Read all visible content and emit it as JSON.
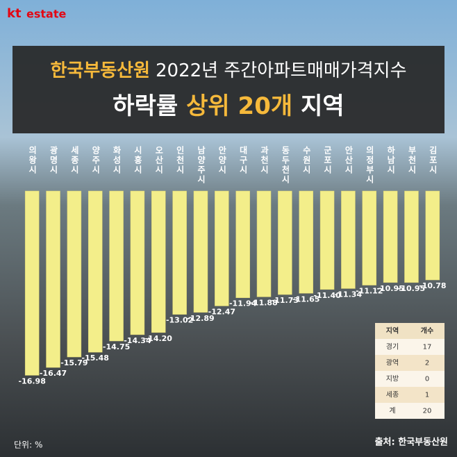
{
  "logo": {
    "brand": "kt",
    "name": "estate"
  },
  "chart_data": {
    "type": "bar",
    "title": {
      "line1": [
        "한국부동산원",
        "2022년 주간아파트매매가격지수"
      ],
      "line2": [
        "하락률",
        "상위 20개",
        "지역"
      ]
    },
    "categories": [
      "의왕시",
      "광명시",
      "세종시",
      "양주시",
      "화성시",
      "시흥시",
      "오산시",
      "인천시",
      "남양주시",
      "안양시",
      "대구시",
      "과천시",
      "동두천시",
      "수원시",
      "군포시",
      "안산시",
      "의정부시",
      "하남시",
      "부천시",
      "김포시"
    ],
    "values": [
      -16.98,
      -16.47,
      -15.79,
      -15.48,
      -14.75,
      -14.34,
      -14.2,
      -13.02,
      -12.89,
      -12.47,
      -11.94,
      -11.88,
      -11.73,
      -11.65,
      -11.4,
      -11.34,
      -11.12,
      -10.95,
      -10.95,
      -10.78
    ],
    "value_labels": [
      "-16.98",
      "-16.47",
      "-15.79",
      "-15.48",
      "-14.75",
      "-14.34",
      "-14.20",
      "-13.02",
      "-12.89",
      "-12.47",
      "-11.94",
      "-11.88",
      "-11.73",
      "-11.65",
      "-11.40",
      "-11.34",
      "-11.12",
      "-10.95",
      "-10.95",
      "-10.78"
    ],
    "color": "#f3ee8a",
    "ylim": [
      -5,
      -18
    ],
    "unit_note": "단위: %",
    "source": "출처: 한국부동산원"
  },
  "table": {
    "header": [
      "지역",
      "개수"
    ],
    "rows": [
      [
        "경기",
        "17"
      ],
      [
        "광역",
        "2"
      ],
      [
        "지방",
        "0"
      ],
      [
        "세종",
        "1"
      ],
      [
        "계",
        "20"
      ]
    ]
  }
}
